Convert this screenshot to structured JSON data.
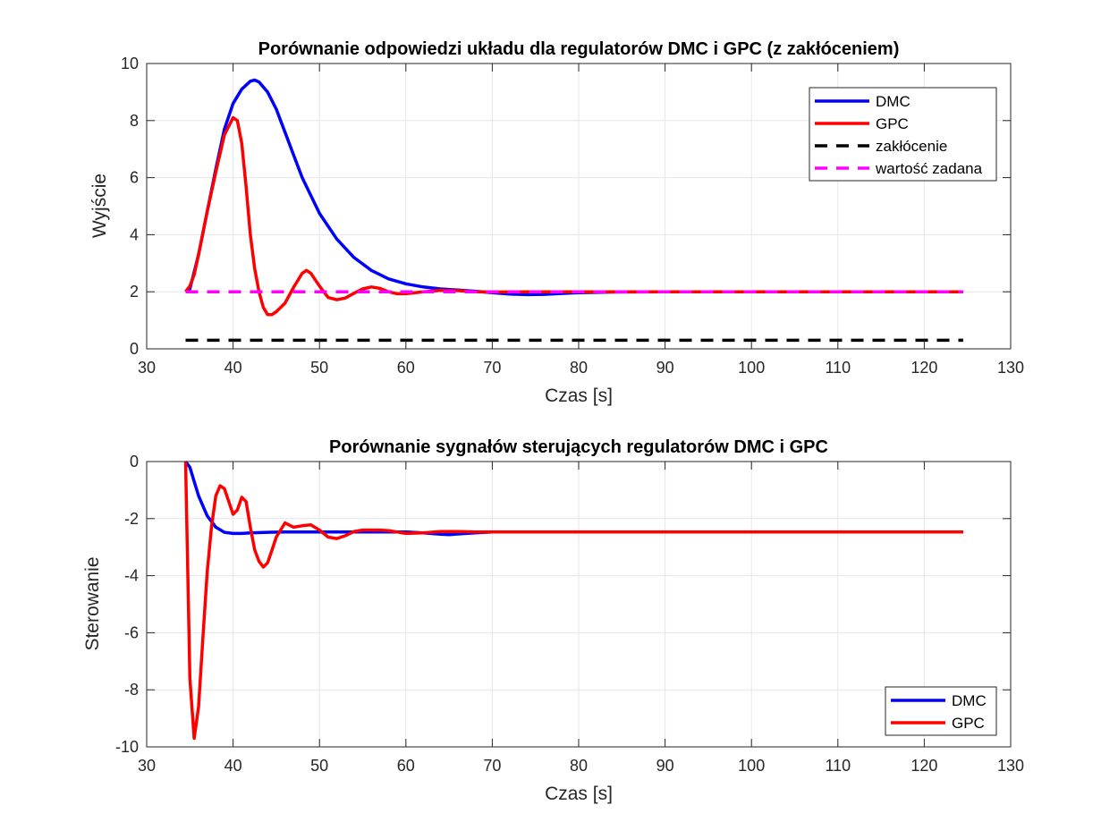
{
  "figure": {
    "background": "#ffffff",
    "grid_color": "#e6e6e6",
    "axis_color": "#262626"
  },
  "chart_data": [
    {
      "type": "line",
      "title": "Porównanie odpowiedzi układu dla regulatorów DMC i GPC (z zakłóceniem)",
      "xlabel": "Czas [s]",
      "ylabel": "Wyjście",
      "xlim": [
        30,
        130
      ],
      "ylim": [
        0,
        10
      ],
      "xticks": [
        30,
        40,
        50,
        60,
        70,
        80,
        90,
        100,
        110,
        120,
        130
      ],
      "yticks": [
        0,
        2,
        4,
        6,
        8,
        10
      ],
      "grid": true,
      "legend_position": "top-right",
      "series": [
        {
          "name": "DMC",
          "color": "#0000ff",
          "dash": "solid",
          "x": [
            34.5,
            35,
            36,
            37,
            38,
            39,
            40,
            41,
            42,
            42.5,
            43,
            44,
            45,
            46,
            47,
            48,
            50,
            52,
            54,
            56,
            58,
            60,
            62,
            64,
            66,
            68,
            70,
            72,
            74,
            76,
            78,
            80,
            84,
            90,
            100,
            110,
            124.5
          ],
          "y": [
            2.0,
            2.1,
            3.3,
            4.8,
            6.3,
            7.7,
            8.6,
            9.1,
            9.38,
            9.42,
            9.35,
            9.0,
            8.4,
            7.6,
            6.8,
            6.0,
            4.75,
            3.85,
            3.2,
            2.75,
            2.45,
            2.28,
            2.17,
            2.1,
            2.06,
            2.02,
            1.97,
            1.92,
            1.9,
            1.91,
            1.94,
            1.97,
            1.99,
            2.0,
            2.0,
            2.0,
            2.0
          ]
        },
        {
          "name": "GPC",
          "color": "#ff0000",
          "dash": "solid",
          "x": [
            34.5,
            35,
            35.5,
            36,
            37,
            38,
            39,
            40,
            40.5,
            41,
            41.5,
            42,
            42.5,
            43,
            43.5,
            44,
            44.5,
            45,
            46,
            47,
            48,
            48.5,
            49,
            50,
            51,
            52,
            53,
            54,
            55,
            56,
            57,
            58,
            59,
            60,
            62,
            64,
            66,
            68,
            70,
            74,
            80,
            90,
            100,
            110,
            124.5
          ],
          "y": [
            2.0,
            2.2,
            2.6,
            3.3,
            4.8,
            6.2,
            7.5,
            8.1,
            8.0,
            7.2,
            5.7,
            4.0,
            2.8,
            2.0,
            1.45,
            1.2,
            1.2,
            1.3,
            1.6,
            2.15,
            2.65,
            2.75,
            2.65,
            2.2,
            1.8,
            1.72,
            1.78,
            1.95,
            2.1,
            2.17,
            2.12,
            2.0,
            1.93,
            1.93,
            2.0,
            2.05,
            2.04,
            2.0,
            1.99,
            2.0,
            2.0,
            2.0,
            2.0,
            2.0,
            2.0
          ]
        },
        {
          "name": "zakłócenie",
          "color": "#000000",
          "dash": "dashed",
          "x": [
            34.5,
            124.5
          ],
          "y": [
            0.3,
            0.3
          ]
        },
        {
          "name": "wartość zadana",
          "color": "#ff00ff",
          "dash": "dashed",
          "x": [
            34.5,
            124.5
          ],
          "y": [
            2.0,
            2.0
          ]
        }
      ]
    },
    {
      "type": "line",
      "title": "Porównanie sygnałów sterujących regulatorów DMC i GPC",
      "xlabel": "Czas [s]",
      "ylabel": "Sterowanie",
      "xlim": [
        30,
        130
      ],
      "ylim": [
        -10,
        0
      ],
      "xticks": [
        30,
        40,
        50,
        60,
        70,
        80,
        90,
        100,
        110,
        120,
        130
      ],
      "yticks": [
        -10,
        -8,
        -6,
        -4,
        -2,
        0
      ],
      "grid": true,
      "legend_position": "bottom-right",
      "series": [
        {
          "name": "DMC",
          "color": "#0000ff",
          "dash": "solid",
          "x": [
            34.5,
            35,
            35.5,
            36,
            37,
            38,
            39,
            40,
            41,
            42,
            44,
            46,
            48,
            50,
            55,
            60,
            62,
            64,
            65,
            66,
            68,
            70,
            80,
            90,
            100,
            110,
            124.5
          ],
          "y": [
            0,
            -0.2,
            -0.7,
            -1.2,
            -1.9,
            -2.3,
            -2.48,
            -2.52,
            -2.52,
            -2.5,
            -2.48,
            -2.47,
            -2.47,
            -2.47,
            -2.47,
            -2.47,
            -2.5,
            -2.55,
            -2.56,
            -2.54,
            -2.5,
            -2.47,
            -2.47,
            -2.47,
            -2.47,
            -2.47,
            -2.47
          ]
        },
        {
          "name": "GPC",
          "color": "#ff0000",
          "dash": "solid",
          "x": [
            34.5,
            35,
            35.5,
            36,
            36.5,
            37,
            37.5,
            38,
            38.5,
            39,
            39.5,
            40,
            40.5,
            41,
            41.5,
            42,
            42.5,
            43,
            43.5,
            44,
            44.5,
            45,
            46,
            47,
            48,
            49,
            50,
            51,
            52,
            53,
            54,
            55,
            56,
            57,
            58,
            59,
            60,
            62,
            64,
            66,
            68,
            70,
            80,
            90,
            100,
            110,
            124.5
          ],
          "y": [
            0,
            -7.6,
            -9.7,
            -8.6,
            -6.2,
            -3.9,
            -2.3,
            -1.2,
            -0.85,
            -0.95,
            -1.4,
            -1.85,
            -1.7,
            -1.25,
            -1.4,
            -2.3,
            -3.1,
            -3.5,
            -3.7,
            -3.55,
            -3.1,
            -2.65,
            -2.15,
            -2.3,
            -2.25,
            -2.22,
            -2.4,
            -2.65,
            -2.7,
            -2.6,
            -2.45,
            -2.4,
            -2.4,
            -2.4,
            -2.42,
            -2.47,
            -2.52,
            -2.5,
            -2.45,
            -2.45,
            -2.47,
            -2.47,
            -2.47,
            -2.47,
            -2.47,
            -2.47,
            -2.47
          ]
        }
      ]
    }
  ]
}
